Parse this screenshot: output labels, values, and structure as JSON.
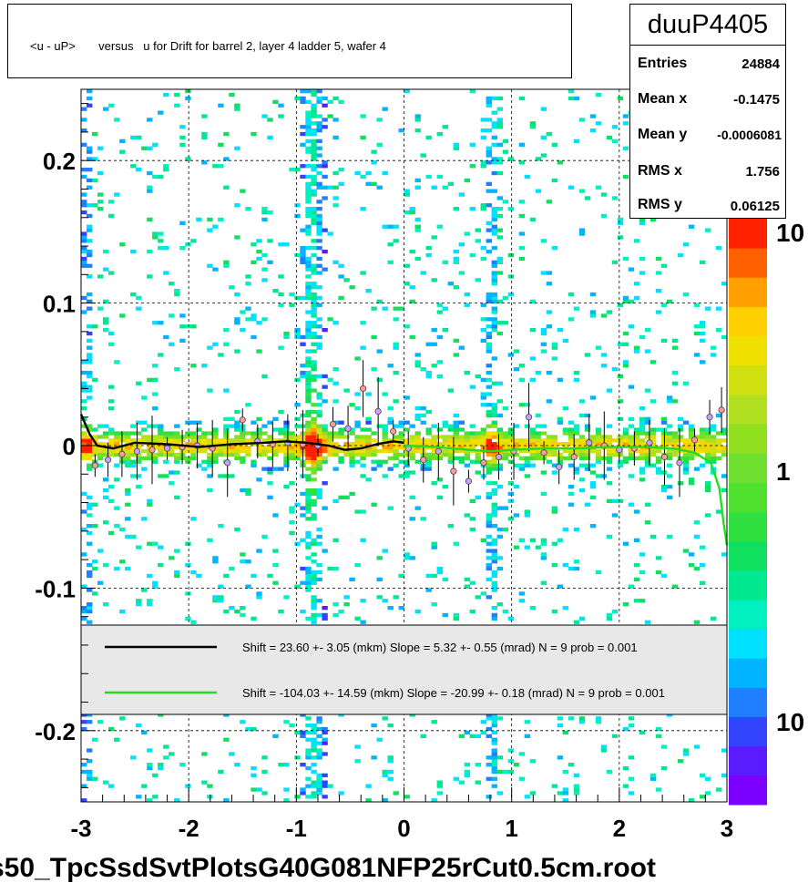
{
  "title": "<u - uP>       versus   u for Drift for barrel 2, layer 4 ladder 5, wafer 4",
  "stats": {
    "name": "duuP4405",
    "rows": [
      {
        "label": "Entries",
        "value": "24884"
      },
      {
        "label": "Mean x",
        "value": "-0.1475"
      },
      {
        "label": "Mean y",
        "value": "-0.0006081"
      },
      {
        "label": "RMS x",
        "value": "1.756"
      },
      {
        "label": "RMS y",
        "value": "0.06125"
      }
    ]
  },
  "legend": {
    "entries": [
      {
        "text": "Shift =     23.60 +- 3.05 (mkm) Slope =     5.32 +- 0.55 (mrad)  N = 9 prob = 0.001",
        "color": "#000000"
      },
      {
        "text": "Shift =  -104.03 +- 14.59 (mkm) Slope =   -20.99 +- 0.18 (mrad)  N = 9 prob = 0.001",
        "color": "#22dd22"
      }
    ]
  },
  "footer": "s50_TpcSsdSvtPlotsG40G081NFP25rCut0.5cm.root",
  "chart_data": {
    "type": "heatmap",
    "xlim": [
      -3,
      3
    ],
    "ylim": [
      -0.25,
      0.25
    ],
    "x_ticks": [
      -3,
      -2,
      -1,
      0,
      1,
      2,
      3
    ],
    "y_ticks": [
      -0.2,
      -0.1,
      0,
      0.1,
      0.2
    ],
    "x_tick_labels": [
      "-3",
      "-2",
      "-1",
      "0",
      "1",
      "2",
      "3"
    ],
    "y_tick_labels": [
      "-0.2",
      "-0.1",
      "0",
      "0.1",
      "0.2"
    ],
    "grid": true,
    "log_z": true,
    "colorbar_labels": [
      "10",
      "1",
      "10"
    ],
    "palette": [
      "#7b00ff",
      "#5a1cff",
      "#3344ff",
      "#1f7fff",
      "#00b4ff",
      "#00e0ff",
      "#00f0c0",
      "#00e890",
      "#10e060",
      "#30e040",
      "#50e030",
      "#70e030",
      "#90e020",
      "#b0e020",
      "#d0e010",
      "#f0e000",
      "#ffd000",
      "#ffa000",
      "#ff6000",
      "#ff2000"
    ],
    "profile_points": [
      {
        "x": -2.87,
        "y": -0.014
      },
      {
        "x": -2.75,
        "y": -0.01
      },
      {
        "x": -2.62,
        "y": -0.006
      },
      {
        "x": -2.48,
        "y": -0.004
      },
      {
        "x": -2.34,
        "y": -0.003
      },
      {
        "x": -2.2,
        "y": -0.002
      },
      {
        "x": -2.06,
        "y": -0.001
      },
      {
        "x": -1.92,
        "y": 0.0
      },
      {
        "x": -1.78,
        "y": -0.002
      },
      {
        "x": -1.64,
        "y": -0.012
      },
      {
        "x": -1.5,
        "y": 0.018
      },
      {
        "x": -1.36,
        "y": 0.003
      },
      {
        "x": -1.22,
        "y": 0.001
      },
      {
        "x": -1.08,
        "y": 0.002
      },
      {
        "x": -0.94,
        "y": 0.001
      },
      {
        "x": -0.8,
        "y": 0.0
      },
      {
        "x": -0.66,
        "y": 0.015
      },
      {
        "x": -0.52,
        "y": 0.012
      },
      {
        "x": -0.38,
        "y": 0.04
      },
      {
        "x": -0.24,
        "y": 0.024
      },
      {
        "x": -0.1,
        "y": 0.01
      },
      {
        "x": 0.04,
        "y": -0.002
      },
      {
        "x": 0.18,
        "y": -0.01
      },
      {
        "x": 0.32,
        "y": -0.004
      },
      {
        "x": 0.46,
        "y": -0.018
      },
      {
        "x": 0.6,
        "y": -0.025
      },
      {
        "x": 0.74,
        "y": -0.012
      },
      {
        "x": 0.88,
        "y": -0.008
      },
      {
        "x": 1.02,
        "y": -0.004
      },
      {
        "x": 1.16,
        "y": 0.02
      },
      {
        "x": 1.3,
        "y": -0.005
      },
      {
        "x": 1.44,
        "y": -0.015
      },
      {
        "x": 1.58,
        "y": -0.008
      },
      {
        "x": 1.72,
        "y": 0.002
      },
      {
        "x": 1.86,
        "y": 0.0
      },
      {
        "x": 2.0,
        "y": -0.003
      },
      {
        "x": 2.14,
        "y": -0.002
      },
      {
        "x": 2.28,
        "y": 0.002
      },
      {
        "x": 2.42,
        "y": -0.008
      },
      {
        "x": 2.56,
        "y": -0.012
      },
      {
        "x": 2.7,
        "y": 0.004
      },
      {
        "x": 2.84,
        "y": 0.02
      },
      {
        "x": 2.95,
        "y": 0.025
      }
    ],
    "series": [
      {
        "name": "",
        "color": "#000000",
        "x": [
          -3.0,
          -2.92,
          -2.85,
          -2.7,
          -2.5,
          -2.2,
          -1.9,
          -1.6,
          -1.3,
          -1.1,
          -0.9,
          -0.7,
          -0.55,
          -0.4,
          -0.25,
          -0.1,
          0.0
        ],
        "y": [
          0.022,
          0.008,
          0.0,
          -0.002,
          0.002,
          0.001,
          -0.001,
          0.001,
          0.002,
          0.003,
          0.002,
          0.0,
          -0.003,
          -0.002,
          0.001,
          0.003,
          0.002
        ]
      },
      {
        "name": "",
        "color": "#22dd22",
        "x": [
          0.0,
          0.3,
          0.6,
          0.8,
          1.0,
          1.3,
          1.6,
          1.9,
          2.2,
          2.5,
          2.7,
          2.85,
          2.93,
          2.97,
          3.0
        ],
        "y": [
          0.0,
          -0.001,
          -0.003,
          -0.004,
          -0.003,
          -0.002,
          -0.002,
          -0.001,
          -0.001,
          -0.002,
          -0.005,
          -0.012,
          -0.03,
          -0.055,
          -0.07
        ]
      }
    ]
  }
}
